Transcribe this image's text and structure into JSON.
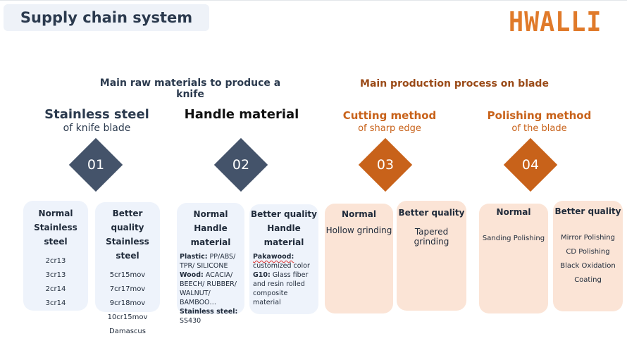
{
  "header": {
    "title": "Supply chain system",
    "logo_text": "HWALLI"
  },
  "sections": {
    "raw": "Main raw materials to produce a knife",
    "process": "Main production process on blade"
  },
  "columns": [
    {
      "title": "Stainless steel",
      "subtitle": "of knife blade",
      "number": "01"
    },
    {
      "title": "Handle material",
      "subtitle": "",
      "number": "02"
    },
    {
      "title": "Cutting method",
      "subtitle": "of sharp edge",
      "number": "03"
    },
    {
      "title": "Polishing method",
      "subtitle": "of the blade",
      "number": "04"
    }
  ],
  "cards": {
    "steel_normal": {
      "h1": "Normal",
      "h2": "Stainless steel",
      "items": [
        "2cr13",
        "3cr13",
        "2cr14",
        "3cr14"
      ]
    },
    "steel_better": {
      "h1": "Better quality",
      "h2": "Stainless steel",
      "items": [
        "5cr15mov",
        "7cr17mov",
        "9cr18mov",
        "10cr15mov",
        "Damascus"
      ]
    },
    "handle_normal": {
      "h1": "Normal",
      "h2": "Handle material",
      "plastic_label": "Plastic:",
      "plastic_text": " PP/ABS/ TPR/ SILICONE",
      "wood_label": "Wood:",
      "wood_text": " ACACIA/ BEECH/ RUBBER/ WALNUT/ BAMBOO…",
      "steel_label": "Stainless steel:",
      "steel_text": " SS430"
    },
    "handle_better": {
      "h1": "Better quality",
      "h2": "Handle material",
      "pakawood_label": "Pakawood:",
      "pakawood_text": "customized color",
      "g10_label": "G10:",
      "g10_text": " Glass fiber and resin rolled composite  material"
    },
    "cut_normal": {
      "h1": "Normal",
      "item": "Hollow grinding"
    },
    "cut_better": {
      "h1": "Better quality",
      "item": "Tapered grinding"
    },
    "polish_normal": {
      "h1": "Normal",
      "item": "Sanding Polishing"
    },
    "polish_better": {
      "h1": "Better quality",
      "items": [
        "Mirror Polishing",
        "CD Polishing",
        "Black Oxidation",
        "Coating"
      ]
    }
  },
  "colors": {
    "navy": "#44536a",
    "orange": "#c8621a",
    "brown": "#9a4a17",
    "blue_card": "#eef3fb",
    "peach_card": "#fbe4d6"
  }
}
